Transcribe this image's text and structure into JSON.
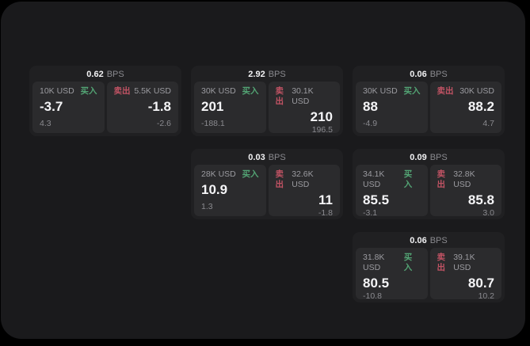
{
  "labels": {
    "bps": "BPS",
    "buy": "买入",
    "sell": "卖出"
  },
  "colors": {
    "page_bg": "#000000",
    "container_bg": "#1a1a1c",
    "card_bg": "#202022",
    "panel_bg": "#2b2b2d",
    "buy_green": "#53a474",
    "sell_red": "#c15364",
    "price_text": "#f5f5f7",
    "muted_text": "#8a8a8f"
  },
  "cards": [
    {
      "bps": "0.62",
      "col": 1,
      "row": 1,
      "buy": {
        "amount": "10K USD",
        "price": "-3.7",
        "delta": "4.3"
      },
      "sell": {
        "amount": "5.5K USD",
        "price": "-1.8",
        "delta": "-2.6"
      }
    },
    {
      "bps": "2.92",
      "col": 2,
      "row": 1,
      "buy": {
        "amount": "30K USD",
        "price": "201",
        "delta": "-188.1"
      },
      "sell": {
        "amount": "30.1K USD",
        "price": "210",
        "delta": "196.5"
      }
    },
    {
      "bps": "0.06",
      "col": 3,
      "row": 1,
      "buy": {
        "amount": "30K USD",
        "price": "88",
        "delta": "-4.9"
      },
      "sell": {
        "amount": "30K USD",
        "price": "88.2",
        "delta": "4.7"
      }
    },
    {
      "bps": "0.03",
      "col": 2,
      "row": 2,
      "buy": {
        "amount": "28K USD",
        "price": "10.9",
        "delta": "1.3"
      },
      "sell": {
        "amount": "32.6K USD",
        "price": "11",
        "delta": "-1.8"
      }
    },
    {
      "bps": "0.09",
      "col": 3,
      "row": 2,
      "buy": {
        "amount": "34.1K USD",
        "price": "85.5",
        "delta": "-3.1"
      },
      "sell": {
        "amount": "32.8K USD",
        "price": "85.8",
        "delta": "3.0"
      }
    },
    {
      "bps": "0.06",
      "col": 3,
      "row": 3,
      "buy": {
        "amount": "31.8K USD",
        "price": "80.5",
        "delta": "-10.8"
      },
      "sell": {
        "amount": "39.1K USD",
        "price": "80.7",
        "delta": "10.2"
      }
    }
  ]
}
